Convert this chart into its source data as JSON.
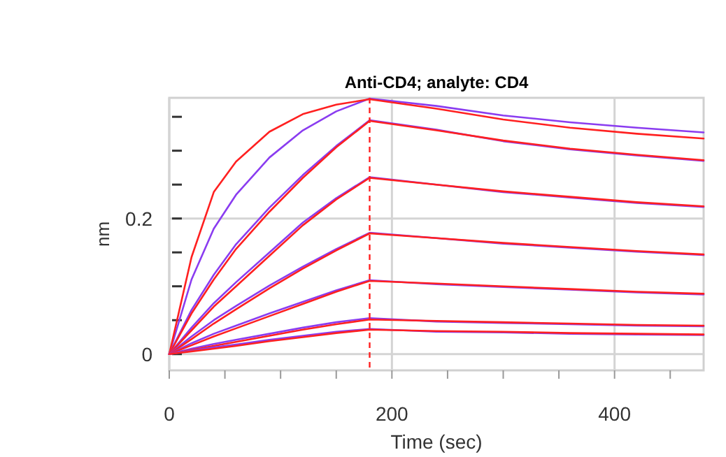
{
  "chart_data": {
    "type": "line",
    "title": "Anti-CD4; analyte: CD4",
    "xlabel": "Time (sec)",
    "ylabel": "nm",
    "x": [
      0,
      20,
      40,
      60,
      90,
      120,
      150,
      180,
      240,
      300,
      360,
      420,
      480
    ],
    "series": [
      {
        "color": "#8a3cf0",
        "values": [
          0,
          0.11,
          0.185,
          0.235,
          0.29,
          0.33,
          0.358,
          0.377,
          0.366,
          0.352,
          0.342,
          0.334,
          0.327
        ]
      },
      {
        "color": "#ff2020",
        "values": [
          0,
          0.143,
          0.239,
          0.284,
          0.328,
          0.354,
          0.368,
          0.376,
          0.362,
          0.346,
          0.334,
          0.325,
          0.318
        ]
      },
      {
        "color": "#8a3cf0",
        "values": [
          0,
          0.065,
          0.117,
          0.162,
          0.216,
          0.264,
          0.307,
          0.345,
          0.331,
          0.314,
          0.302,
          0.293,
          0.285
        ]
      },
      {
        "color": "#ff2020",
        "values": [
          0,
          0.06,
          0.11,
          0.155,
          0.21,
          0.26,
          0.305,
          0.344,
          0.33,
          0.315,
          0.303,
          0.294,
          0.286
        ]
      },
      {
        "color": "#8a3cf0",
        "values": [
          0,
          0.039,
          0.075,
          0.106,
          0.15,
          0.194,
          0.23,
          0.261,
          0.25,
          0.239,
          0.231,
          0.223,
          0.217
        ]
      },
      {
        "color": "#ff2020",
        "values": [
          0,
          0.035,
          0.07,
          0.1,
          0.145,
          0.19,
          0.228,
          0.26,
          0.25,
          0.24,
          0.232,
          0.224,
          0.218
        ]
      },
      {
        "color": "#8a3cf0",
        "values": [
          0,
          0.026,
          0.05,
          0.071,
          0.101,
          0.129,
          0.155,
          0.179,
          0.171,
          0.163,
          0.157,
          0.151,
          0.146
        ]
      },
      {
        "color": "#ff2020",
        "values": [
          0,
          0.022,
          0.045,
          0.066,
          0.097,
          0.126,
          0.153,
          0.178,
          0.171,
          0.164,
          0.158,
          0.152,
          0.147
        ]
      },
      {
        "color": "#8a3cf0",
        "values": [
          0,
          0.016,
          0.03,
          0.042,
          0.06,
          0.077,
          0.094,
          0.109,
          0.103,
          0.099,
          0.095,
          0.091,
          0.088
        ]
      },
      {
        "color": "#ff2020",
        "values": [
          0,
          0.013,
          0.026,
          0.038,
          0.056,
          0.074,
          0.092,
          0.108,
          0.104,
          0.1,
          0.096,
          0.092,
          0.089
        ]
      },
      {
        "color": "#8a3cf0",
        "values": [
          0,
          0.008,
          0.015,
          0.021,
          0.03,
          0.039,
          0.047,
          0.053,
          0.048,
          0.046,
          0.044,
          0.042,
          0.041
        ]
      },
      {
        "color": "#ff2020",
        "values": [
          0,
          0.006,
          0.012,
          0.018,
          0.027,
          0.036,
          0.044,
          0.051,
          0.049,
          0.047,
          0.045,
          0.043,
          0.042
        ]
      },
      {
        "color": "#8a3cf0",
        "values": [
          0,
          0.005,
          0.01,
          0.014,
          0.021,
          0.027,
          0.033,
          0.037,
          0.033,
          0.032,
          0.03,
          0.029,
          0.028
        ]
      },
      {
        "color": "#ff2020",
        "values": [
          0,
          0.004,
          0.008,
          0.012,
          0.019,
          0.025,
          0.031,
          0.036,
          0.034,
          0.033,
          0.031,
          0.03,
          0.029
        ]
      }
    ],
    "xlim": [
      0,
      480
    ],
    "ylim": [
      -0.024,
      0.378
    ],
    "xticks": [
      0,
      {
        "value": 50,
        "label": null
      },
      {
        "value": 100,
        "label": null
      },
      {
        "value": 150,
        "label": null
      },
      200,
      {
        "value": 250,
        "label": null
      },
      {
        "value": 300,
        "label": null
      },
      {
        "value": 350,
        "label": null
      },
      400,
      {
        "value": 450,
        "label": null
      }
    ],
    "yticks": [
      0,
      {
        "value": 0.05,
        "label": null
      },
      {
        "value": 0.1,
        "label": null
      },
      {
        "value": 0.15,
        "label": null
      },
      {
        "value": 0.2,
        "label": "0.2"
      },
      {
        "value": 0.25,
        "label": null
      },
      {
        "value": 0.3,
        "label": null
      },
      {
        "value": 0.35,
        "label": null
      }
    ],
    "ref_lines": [
      {
        "axis": "x",
        "value": 180,
        "color": "#ff2020",
        "line_style": "dashed"
      }
    ],
    "grid": true,
    "marker": "none",
    "line_style": "solid"
  }
}
